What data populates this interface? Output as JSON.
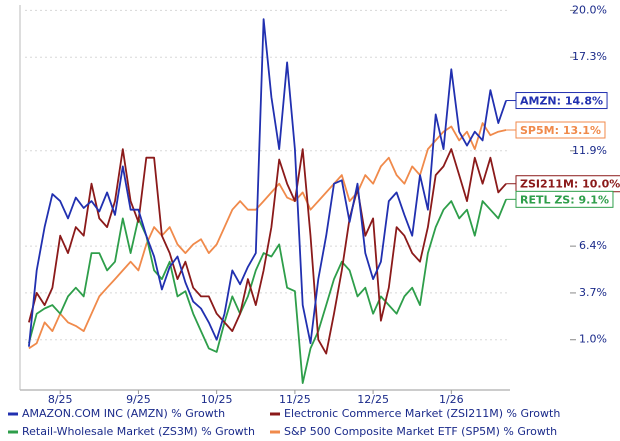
{
  "chart_data": {
    "type": "line",
    "categories": [
      null,
      null,
      null,
      null,
      "8/25",
      null,
      null,
      null,
      null,
      null,
      null,
      null,
      null,
      null,
      "9/25",
      null,
      null,
      null,
      null,
      null,
      null,
      null,
      null,
      null,
      "10/25",
      null,
      null,
      null,
      null,
      null,
      null,
      null,
      null,
      null,
      "11/25",
      null,
      null,
      null,
      null,
      null,
      null,
      null,
      null,
      null,
      "12/25",
      null,
      null,
      null,
      null,
      null,
      null,
      null,
      null,
      null,
      "1/26",
      null,
      null,
      null,
      null,
      null,
      null,
      null
    ],
    "ylim": [
      -1.9,
      20.6
    ],
    "yticks": [
      {
        "value": 1.0,
        "label": "1.0%"
      },
      {
        "value": 3.7,
        "label": "3.7%"
      },
      {
        "value": 6.4,
        "label": "6.4%"
      },
      {
        "value": 11.9,
        "label": "11.9%"
      },
      {
        "value": 17.3,
        "label": "17.3%"
      },
      {
        "value": 20.0,
        "label": "20.0%"
      }
    ],
    "grid": true,
    "series": [
      {
        "name": "AMAZON.COM INC (AMZN) % Growth",
        "color": "#2130b0",
        "end_label": "AMZN: 14.8%",
        "values": [
          0.6,
          5.0,
          7.5,
          9.4,
          9.0,
          8.0,
          9.2,
          8.6,
          9.0,
          8.4,
          9.5,
          8.2,
          11.0,
          8.5,
          8.5,
          7.0,
          5.8,
          3.9,
          5.2,
          5.8,
          4.3,
          3.2,
          2.8,
          2.0,
          1.0,
          2.5,
          5.0,
          4.2,
          5.2,
          6.0,
          19.5,
          15.0,
          12.0,
          17.0,
          12.0,
          3.0,
          0.8,
          4.5,
          7.0,
          10.0,
          10.2,
          7.8,
          10.0,
          6.0,
          4.5,
          5.5,
          9.0,
          9.5,
          8.2,
          7.0,
          10.5,
          8.5,
          14.0,
          12.0,
          16.6,
          13.0,
          12.2,
          13.0,
          12.5,
          15.4,
          13.5,
          14.8
        ]
      },
      {
        "name": "Electronic Commerce Market (ZSI211M) % Growth",
        "color": "#8b1a1a",
        "end_label": "ZSI211M: 10.0%",
        "values": [
          2.0,
          3.7,
          3.0,
          4.0,
          7.0,
          6.0,
          7.5,
          7.0,
          10.0,
          8.0,
          7.5,
          9.0,
          12.0,
          9.0,
          7.8,
          11.5,
          11.5,
          7.0,
          6.0,
          4.5,
          5.5,
          4.0,
          3.5,
          3.5,
          2.5,
          2.0,
          1.5,
          2.5,
          4.5,
          3.0,
          5.0,
          7.5,
          11.4,
          10.0,
          9.0,
          12.0,
          7.0,
          1.0,
          0.2,
          2.5,
          5.0,
          8.0,
          9.7,
          7.0,
          8.0,
          2.1,
          4.0,
          7.5,
          7.0,
          6.0,
          5.5,
          7.5,
          10.5,
          11.0,
          12.0,
          10.5,
          9.0,
          11.5,
          10.0,
          11.5,
          9.5,
          10.0
        ]
      },
      {
        "name": "Retail-Wholesale Market (ZS3M) % Growth",
        "color": "#2e9e4a",
        "end_label": "RETL ZS: 9.1%",
        "values": [
          0.8,
          2.5,
          2.8,
          3.0,
          2.5,
          3.5,
          4.0,
          3.5,
          6.0,
          6.0,
          5.0,
          5.5,
          8.0,
          6.0,
          8.0,
          7.0,
          5.0,
          4.5,
          5.5,
          3.5,
          3.8,
          2.5,
          1.5,
          0.5,
          0.3,
          2.0,
          3.5,
          2.5,
          3.5,
          5.0,
          6.0,
          5.8,
          6.5,
          4.0,
          3.8,
          -1.5,
          0.5,
          1.5,
          3.0,
          4.5,
          5.5,
          5.0,
          3.5,
          4.0,
          2.5,
          3.5,
          3.0,
          2.5,
          3.5,
          4.0,
          3.0,
          6.0,
          7.5,
          8.5,
          9.0,
          8.0,
          8.5,
          7.0,
          9.0,
          8.5,
          8.0,
          9.1
        ]
      },
      {
        "name": "S&P 500 Composite Market ETF (SP5M) % Growth",
        "color": "#f08a4b",
        "end_label": "SP5M: 13.1%",
        "values": [
          0.5,
          0.8,
          2.0,
          1.5,
          2.5,
          2.0,
          1.8,
          1.5,
          2.5,
          3.5,
          4.0,
          4.5,
          5.0,
          5.5,
          5.0,
          6.5,
          7.5,
          7.0,
          7.5,
          6.5,
          6.0,
          6.5,
          6.8,
          6.0,
          6.5,
          7.5,
          8.5,
          9.0,
          8.5,
          8.5,
          9.0,
          9.5,
          10.0,
          9.2,
          9.0,
          9.5,
          8.5,
          9.0,
          9.5,
          10.0,
          10.5,
          9.0,
          9.5,
          10.5,
          10.0,
          11.0,
          11.5,
          10.5,
          10.0,
          11.0,
          10.5,
          12.0,
          12.5,
          13.0,
          13.3,
          12.5,
          13.0,
          12.0,
          13.5,
          12.8,
          13.0,
          13.1
        ]
      }
    ]
  }
}
